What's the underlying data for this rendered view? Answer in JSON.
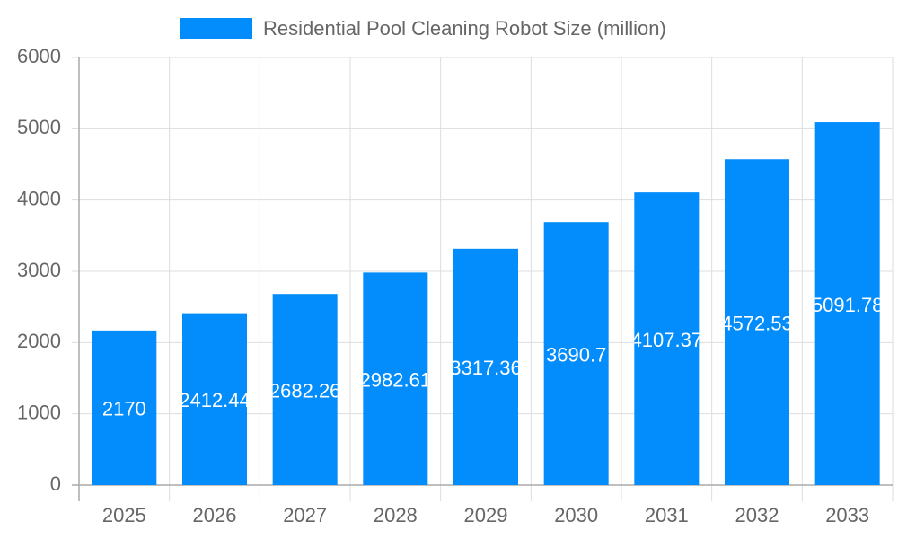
{
  "chart_data": {
    "type": "bar",
    "categories": [
      "2025",
      "2026",
      "2027",
      "2028",
      "2029",
      "2030",
      "2031",
      "2032",
      "2033"
    ],
    "series": [
      {
        "name": "Residential Pool Cleaning Robot Size (million)",
        "color": "#038cfc",
        "values": [
          2170,
          2412.44,
          2682.26,
          2982.61,
          3317.36,
          3690.7,
          4107.37,
          4572.53,
          5091.78
        ]
      }
    ],
    "ylim": [
      0,
      6000
    ],
    "yticks": [
      0,
      1000,
      2000,
      3000,
      4000,
      5000,
      6000
    ],
    "grid": true,
    "legend": "top"
  }
}
